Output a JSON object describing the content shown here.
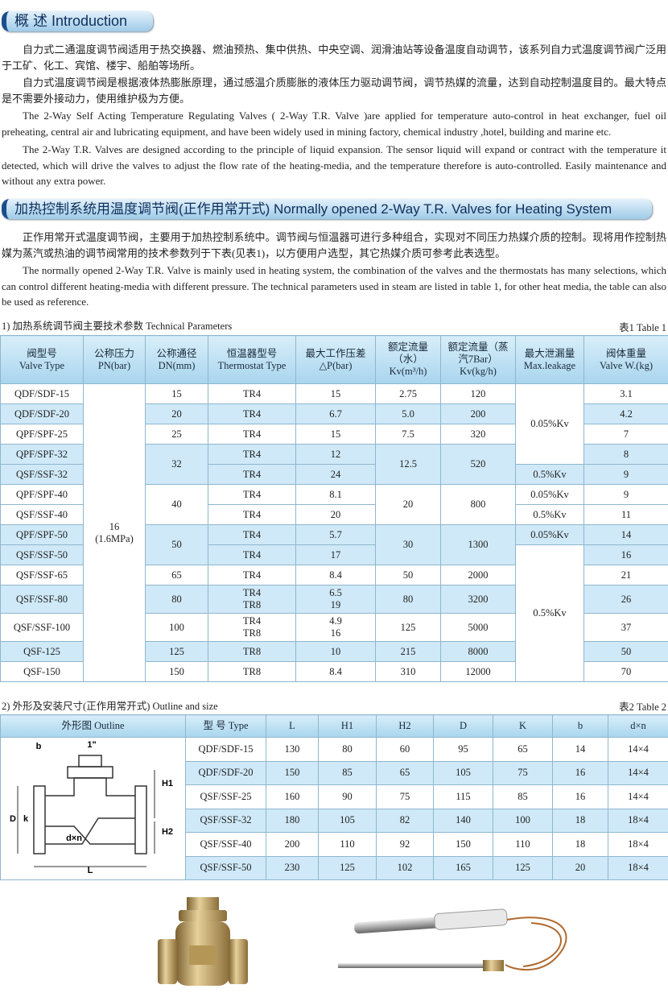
{
  "sections": [
    {
      "heading": "概 述 Introduction",
      "paragraphs": [
        "自力式二通温度调节阀适用于热交换器、燃油预热、集中供热、中央空调、润滑油站等设备温度自动调节，该系列自力式温度调节阀广泛用于工矿、化工、宾馆、楼宇、船舶等场所。",
        "自力式温度调节阀是根据液体热膨胀原理，通过感温介质膨胀的液体压力驱动调节阀，调节热媒的流量，达到自动控制温度目的。最大特点是不需要外接动力，使用维护极为方便。",
        "The 2-Way Self Acting Temperature Regulating Valves ( 2-Way T.R. Valve )are applied for temperature auto-control in heat exchanger, fuel oil preheating, central air and lubricating equipment,  and have been widely used in mining factory, chemical industry ,hotel, building and marine etc.",
        "The 2-Way T.R. Valves are designed according to the principle of liquid expansion. The sensor liquid will expand or contract with the temperature it detected, which will drive the valves to adjust the flow rate of the heating-media, and the temperature therefore is auto-controlled. Easily maintenance and without any extra power."
      ]
    },
    {
      "heading": "加热控制系统用温度调节阀(正作用常开式) Normally opened 2-Way T.R. Valves for Heating System",
      "paragraphs": [
        "正作用常开式温度调节阀，主要用于加热控制系统中。调节阀与恒温器可进行多种组合，实现对不同压力热媒介质的控制。现将用作控制热媒为蒸汽或热油的调节阀常用的技术参数列于下表(见表1)，以方便用户选型，其它热媒介质可参考此表选型。",
        "The normally opened 2-Way T.R. Valve is mainly used in heating system, the combination of the valves and the thermostats has many selections, which can control different heating-media with different pressure. The technical parameters used in steam are listed in table 1, for other heat media, the table can also be used as reference."
      ]
    }
  ],
  "table1": {
    "caption": "1) 加热系统调节阀主要技术参数  Technical Parameters",
    "label": "表1   Table 1",
    "header": [
      "阀型号\nValve Type",
      "公称压力\nPN(bar)",
      "公称通径\nDN(mm)",
      "恒温器型号\nThermostat Type",
      "最大工作压差\n△P(bar)",
      "额定流量\n（水）\nKv(m³/h)",
      "额定流量（蒸\n汽7Bar）\nKv(kg/h)",
      "最大泄漏量\nMax.leakage",
      "阀体重量\nValve W.(kg)"
    ],
    "rows": [
      [
        "QDF/SDF-15",
        "16\n(1.6MPa)",
        "15",
        "TR4",
        "15",
        "2.75",
        "120",
        "0.05%Kv",
        "3.1"
      ],
      [
        "QDF/SDF-20",
        "20",
        "TR4",
        "6.7",
        "5.0",
        "200",
        "4.2"
      ],
      [
        "QPF/SPF-25",
        "25",
        "TR4",
        "15",
        "7.5",
        "320",
        "7"
      ],
      [
        "QPF/SPF-32",
        "32",
        "TR4",
        "12",
        "12.5",
        "520",
        "8"
      ],
      [
        "QSF/SSF-32",
        "TR4",
        "24",
        "0.5%Kv",
        "9"
      ],
      [
        "QPF/SPF-40",
        "40",
        "TR4",
        "8.1",
        "20",
        "800",
        "0.05%Kv",
        "9"
      ],
      [
        "QSF/SSF-40",
        "TR4",
        "20",
        "0.5%Kv",
        "11"
      ],
      [
        "QPF/SPF-50",
        "50",
        "TR4",
        "5.7",
        "30",
        "1300",
        "0.05%Kv",
        "14"
      ],
      [
        "QSF/SSF-50",
        "TR4",
        "17",
        "0.5%Kv",
        "16"
      ],
      [
        "QSF/SSF-65",
        "65",
        "TR4",
        "8.4",
        "50",
        "2000",
        "21"
      ],
      [
        "QSF/SSF-80",
        "80",
        "TR4\nTR8",
        "6.5\n19",
        "80",
        "3200",
        "26"
      ],
      [
        "QSF/SSF-100",
        "100",
        "TR4\nTR8",
        "4.9\n16",
        "125",
        "5000",
        "37"
      ],
      [
        "QSF-125",
        "125",
        "TR8",
        "10",
        "215",
        "8000",
        "50"
      ],
      [
        "QSF-150",
        "150",
        "TR8",
        "8.4",
        "310",
        "12000",
        "70"
      ]
    ]
  },
  "table2": {
    "caption": "2) 外形及安装尺寸(正作用常开式)  Outline and size",
    "label": "表2   Table 2",
    "header": [
      "外形图  Outline",
      "型 号  Type",
      "L",
      "H1",
      "H2",
      "D",
      "K",
      "b",
      "d×n"
    ],
    "outline_labels": [
      "b",
      "1\"",
      "H1",
      "H2",
      "D",
      "k",
      "d×n",
      "L"
    ],
    "rows": [
      [
        "QDF/SDF-15",
        "130",
        "80",
        "60",
        "95",
        "65",
        "14",
        "14×4"
      ],
      [
        "QDF/SDF-20",
        "150",
        "85",
        "65",
        "105",
        "75",
        "16",
        "14×4"
      ],
      [
        "QSF/SSF-25",
        "160",
        "90",
        "75",
        "115",
        "85",
        "16",
        "14×4"
      ],
      [
        "QSF/SSF-32",
        "180",
        "105",
        "82",
        "140",
        "100",
        "18",
        "18×4"
      ],
      [
        "QSF/SSF-40",
        "200",
        "110",
        "92",
        "150",
        "110",
        "18",
        "18×4"
      ],
      [
        "QSF/SSF-50",
        "230",
        "125",
        "102",
        "165",
        "125",
        "20",
        "18×4"
      ]
    ]
  }
}
